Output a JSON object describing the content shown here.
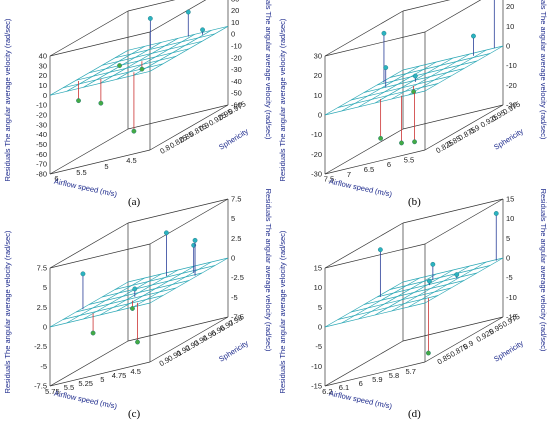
{
  "colors": {
    "box": "#333333",
    "grid": "#2aa7b5",
    "stem_pos": "#2a3f99",
    "stem_neg": "#cc3333",
    "point_pos": "#2bb3c0",
    "point_neg": "#44aa44",
    "label_text": "#1d2a8c"
  },
  "panels": [
    {
      "label": "(a)",
      "zlabel": "Residuals The angular average velocity  (rad/sec)",
      "zlabel_right": "Residuals The angular average velocity  (rad/sec)",
      "xlabel": "Airflow speed (m/s)",
      "ylabel": "Sphericity",
      "zticks": [
        "40",
        "30",
        "20",
        "10",
        "0",
        "-10",
        "-20",
        "-30",
        "-40",
        "-50",
        "-60",
        "-70",
        "-80"
      ],
      "zticks_right": [
        "40",
        "30",
        "20",
        "10",
        "0",
        "-10",
        "-20",
        "-30",
        "-40",
        "-50",
        "-60"
      ],
      "xticks": [
        "6",
        "5.5",
        "5",
        "4.5"
      ],
      "yticks": [
        "0.975",
        "0.95",
        "0.925",
        "0.9",
        "0.875",
        "0.85",
        "0.825",
        "0.8"
      ]
    },
    {
      "label": "(b)",
      "zlabel": "Residuals The angular average velocity  (rad/sec)",
      "zlabel_right": "Residuals The angular average velocity  (rad/sec)",
      "xlabel": "Airflow speed (m/s)",
      "ylabel": "Sphericity",
      "zticks": [
        "30",
        "20",
        "10",
        "0",
        "-10",
        "-20",
        "-30"
      ],
      "zticks_right": [
        "30",
        "20",
        "10",
        "0",
        "-10",
        "-20",
        "-30"
      ],
      "xticks": [
        "7.5",
        "7",
        "6.5",
        "6",
        "5.5"
      ],
      "yticks": [
        "0.975",
        "0.95",
        "0.925",
        "0.9",
        "0.875",
        "0.85",
        "0.825"
      ]
    },
    {
      "label": "(c)",
      "zlabel": "Residuals The angular average velocity  (rad/sec)",
      "zlabel_right": "Residuals The angular average velocity  (rad/sec)",
      "xlabel": "Airflow speed (m/s)",
      "ylabel": "Sphericity",
      "zticks": [
        "7.5",
        "5",
        "2.5",
        "0",
        "-2.5",
        "-5",
        "-7.5"
      ],
      "zticks_right": [
        "7.5",
        "5",
        "2.5",
        "0",
        "-2.5",
        "-5",
        "-7.5"
      ],
      "xticks": [
        "5.75",
        "5.5",
        "5.25",
        "5",
        "4.75",
        "4.5"
      ],
      "yticks": [
        "0.98",
        "0.97",
        "0.96",
        "0.95",
        "0.94",
        "0.93",
        "0.92",
        "0.91",
        "0.9"
      ]
    },
    {
      "label": "(d)",
      "zlabel": "Residuals The angular average velocity  (rad/sec)",
      "zlabel_right": "Residuals The angular average velocity  (rad/sec)",
      "xlabel": "Airflow speed (m/s)",
      "ylabel": "Sphericity",
      "zticks": [
        "15",
        "10",
        "5",
        "0",
        "-5",
        "-10",
        "-15"
      ],
      "zticks_right": [
        "15",
        "10",
        "5",
        "0",
        "-5",
        "-10",
        "-15"
      ],
      "xticks": [
        "6.2",
        "6.1",
        "6",
        "5.9",
        "5.8",
        "5.7"
      ],
      "yticks": [
        "0.975",
        "0.95",
        "0.925",
        "0.9",
        "0.875",
        "0.85"
      ]
    }
  ],
  "chart_data": [
    {
      "type": "scatter",
      "xlabel": "Airflow speed (m/s)",
      "ylabel": "Sphericity",
      "zlabel": "Residuals The angular average velocity  (rad/sec)",
      "xlim": [
        4.5,
        6.1
      ],
      "ylim": [
        0.8,
        0.975
      ],
      "zlim": [
        -80,
        40
      ],
      "points": [
        {
          "x": 5.6,
          "y": 0.955,
          "z": 30
        },
        {
          "x": 5.1,
          "y": 0.97,
          "z": 25
        },
        {
          "x": 4.8,
          "y": 0.96,
          "z": 5
        },
        {
          "x": 5.7,
          "y": 0.9,
          "z": -2
        },
        {
          "x": 6.0,
          "y": 0.85,
          "z": -20
        },
        {
          "x": 5.5,
          "y": 0.83,
          "z": -25
        },
        {
          "x": 5.2,
          "y": 0.88,
          "z": -8
        },
        {
          "x": 4.9,
          "y": 0.82,
          "z": -60
        }
      ]
    },
    {
      "type": "scatter",
      "xlabel": "Airflow speed (m/s)",
      "ylabel": "Sphericity",
      "zlabel": "Residuals The angular average velocity  (rad/sec)",
      "xlim": [
        5.5,
        7.8
      ],
      "ylim": [
        0.825,
        0.975
      ],
      "zlim": [
        -30,
        30
      ],
      "points": [
        {
          "x": 7.7,
          "y": 0.93,
          "z": 25
        },
        {
          "x": 5.7,
          "y": 0.975,
          "z": 28
        },
        {
          "x": 6.0,
          "y": 0.96,
          "z": 10
        },
        {
          "x": 7.3,
          "y": 0.9,
          "z": 10
        },
        {
          "x": 6.5,
          "y": 0.89,
          "z": 3
        },
        {
          "x": 6.3,
          "y": 0.87,
          "z": -3
        },
        {
          "x": 6.7,
          "y": 0.84,
          "z": -20
        },
        {
          "x": 6.1,
          "y": 0.83,
          "z": -24
        },
        {
          "x": 5.8,
          "y": 0.83,
          "z": -25
        }
      ]
    },
    {
      "type": "scatter",
      "xlabel": "Airflow speed (m/s)",
      "ylabel": "Sphericity",
      "zlabel": "Residuals The angular average velocity  (rad/sec)",
      "xlim": [
        4.5,
        5.85
      ],
      "ylim": [
        0.9,
        0.98
      ],
      "zlim": [
        -7.5,
        7.5
      ],
      "points": [
        {
          "x": 5.8,
          "y": 0.93,
          "z": 4.5
        },
        {
          "x": 5.2,
          "y": 0.97,
          "z": 5.5
        },
        {
          "x": 4.7,
          "y": 0.96,
          "z": 3.5
        },
        {
          "x": 4.55,
          "y": 0.95,
          "z": 4.5
        },
        {
          "x": 5.4,
          "y": 0.91,
          "z": -2.5
        },
        {
          "x": 5.0,
          "y": 0.92,
          "z": -1
        },
        {
          "x": 4.8,
          "y": 0.91,
          "z": -5
        },
        {
          "x": 5.1,
          "y": 0.93,
          "z": 1
        }
      ]
    },
    {
      "type": "scatter",
      "xlabel": "Airflow speed (m/s)",
      "ylabel": "Sphericity",
      "zlabel": "Residuals The angular average velocity  (rad/sec)",
      "xlim": [
        5.7,
        6.25
      ],
      "ylim": [
        0.85,
        0.975
      ],
      "zlim": [
        -15,
        15
      ],
      "points": [
        {
          "x": 6.22,
          "y": 0.93,
          "z": 12
        },
        {
          "x": 5.72,
          "y": 0.97,
          "z": 12
        },
        {
          "x": 6.0,
          "y": 0.95,
          "z": 4
        },
        {
          "x": 5.8,
          "y": 0.93,
          "z": 1
        },
        {
          "x": 5.95,
          "y": 0.93,
          "z": 1
        },
        {
          "x": 5.75,
          "y": 0.87,
          "z": -14
        }
      ]
    }
  ]
}
